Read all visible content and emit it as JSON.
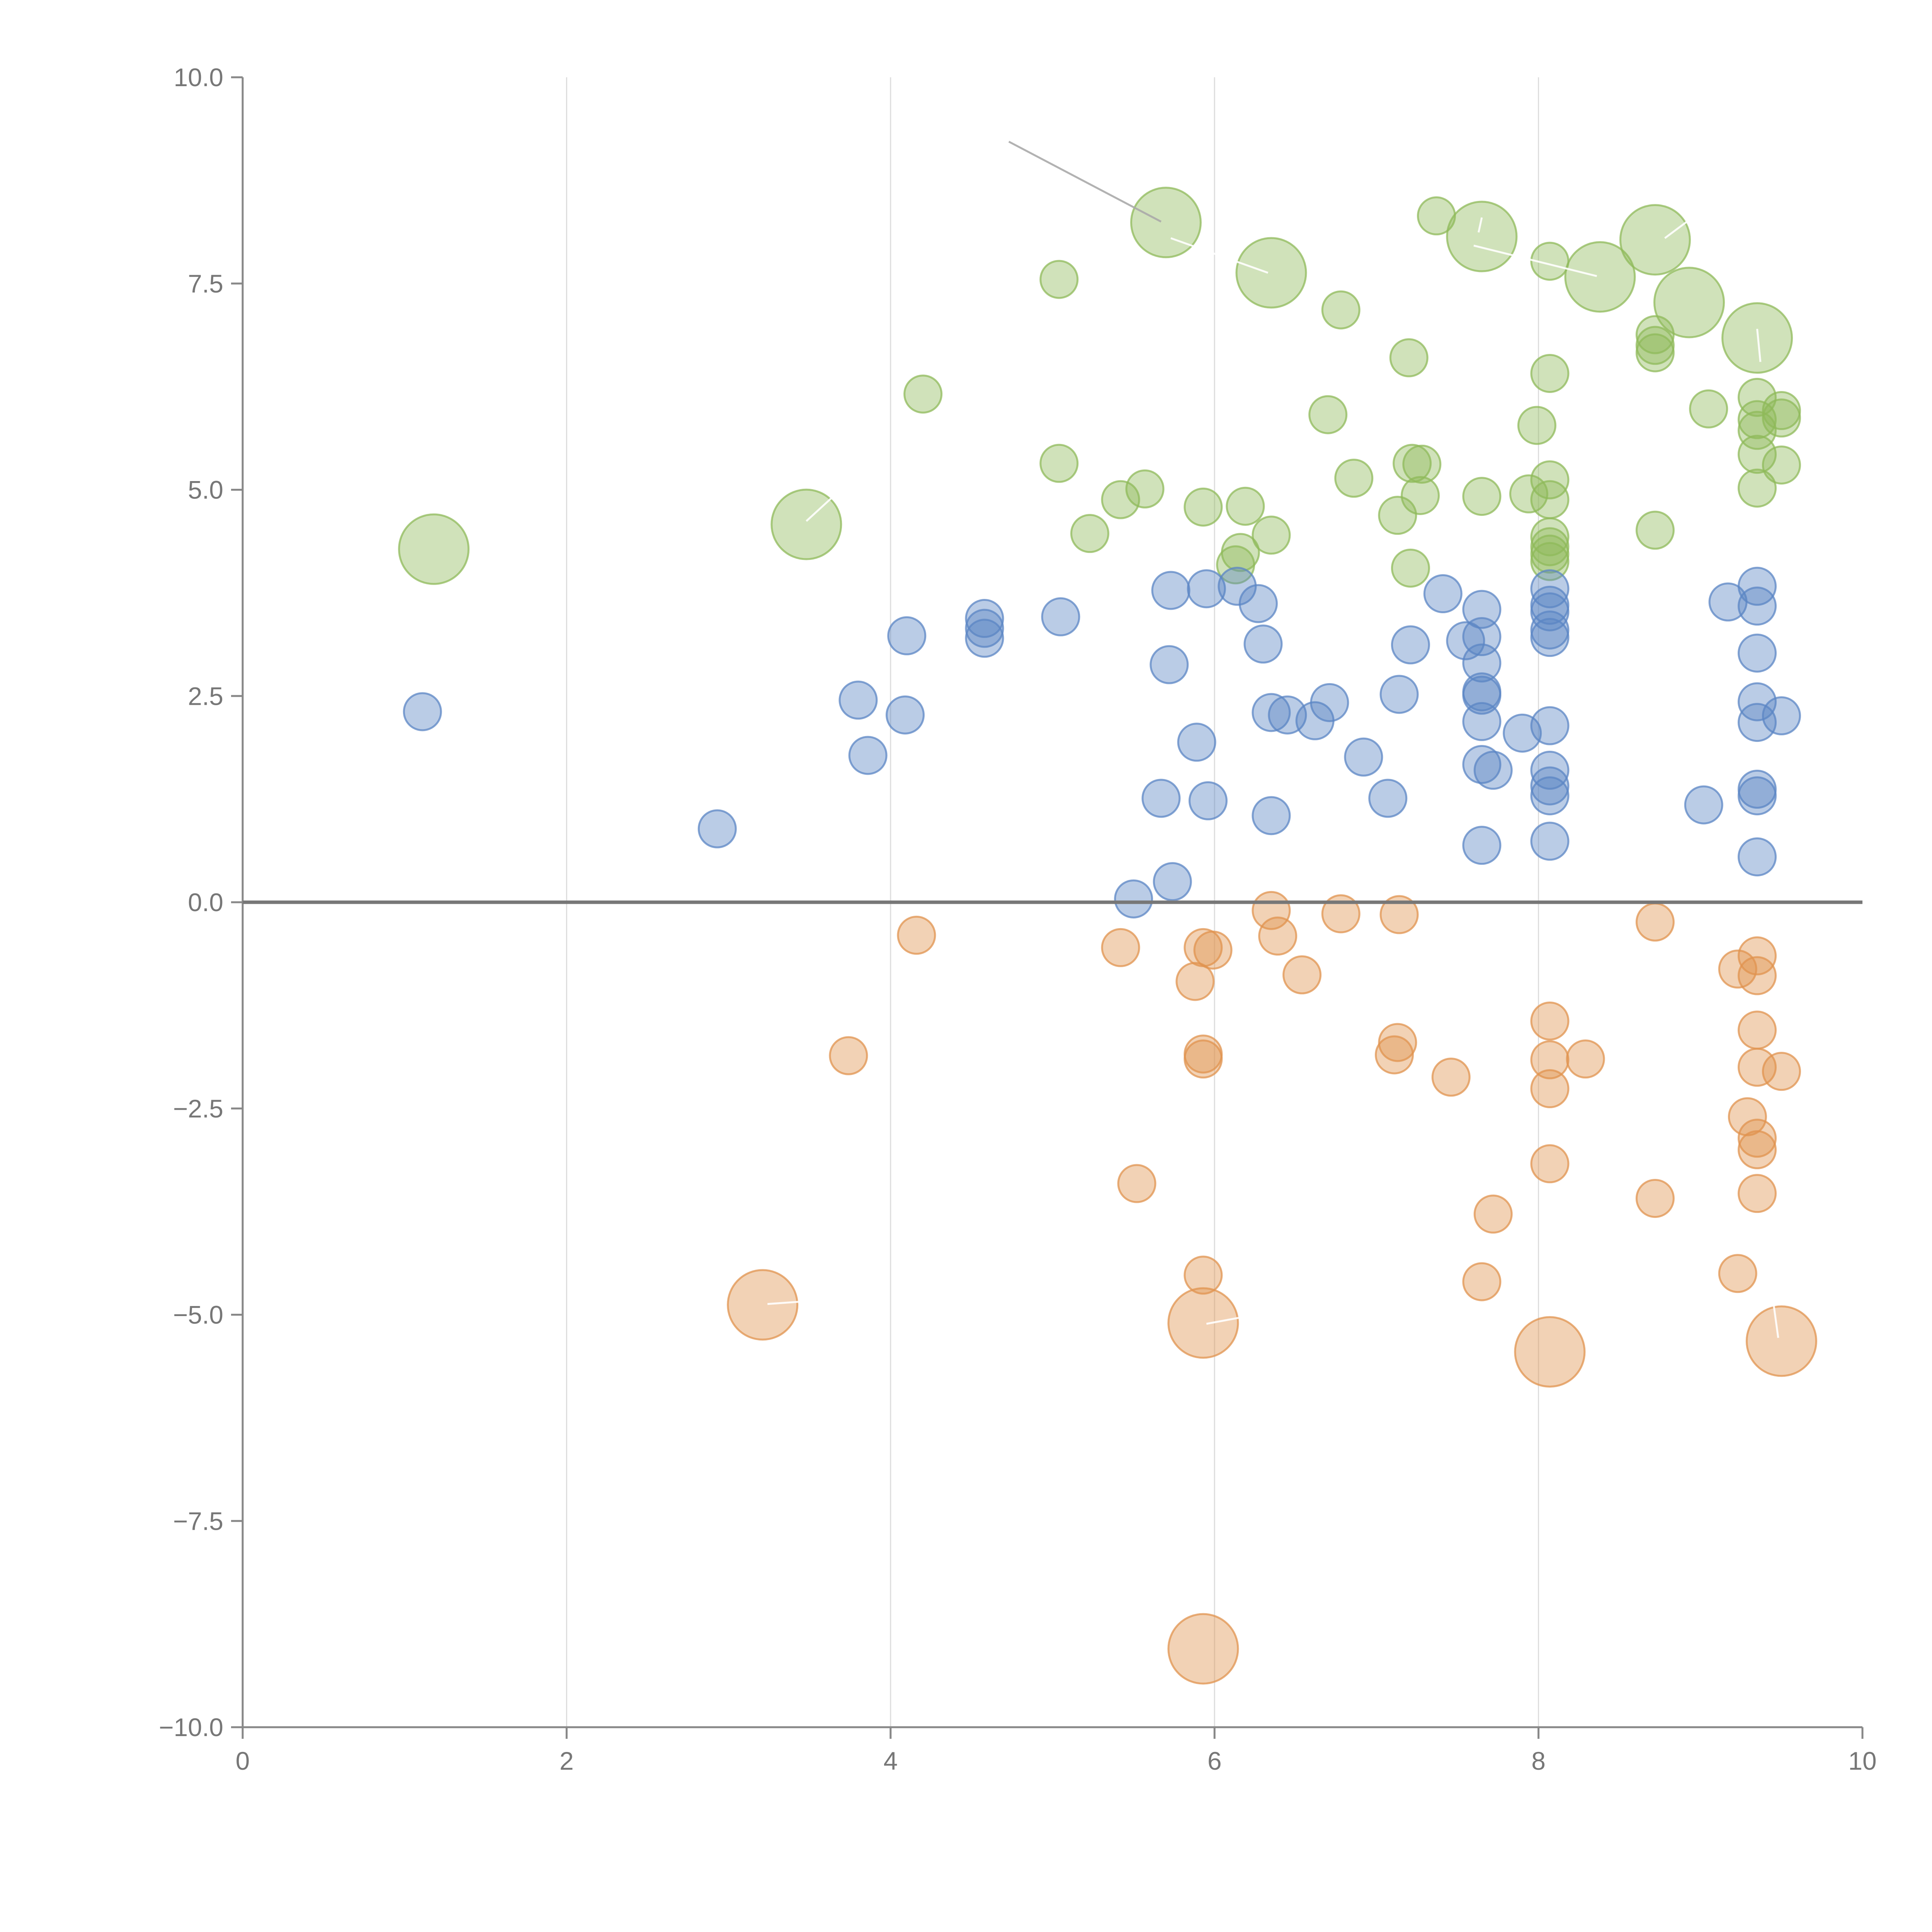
{
  "chart_data": {
    "type": "scatter",
    "title": "",
    "xlabel": "",
    "ylabel": "",
    "xlim": [
      0,
      10
    ],
    "ylim": [
      -10,
      10
    ],
    "grid": "vertical",
    "legend": "none",
    "x_ticks": [
      {
        "value": 0,
        "label": "0"
      },
      {
        "value": 2,
        "label": "2"
      },
      {
        "value": 4,
        "label": "4"
      },
      {
        "value": 6,
        "label": "6"
      },
      {
        "value": 8,
        "label": "8"
      },
      {
        "value": 10,
        "label": "10"
      }
    ],
    "y_ticks": [
      {
        "value": 10,
        "label": "10.0"
      },
      {
        "value": 7.5,
        "label": "7.5"
      },
      {
        "value": 5,
        "label": "5.0"
      },
      {
        "value": 2.5,
        "label": "2.5"
      },
      {
        "value": 0,
        "label": "0.0"
      },
      {
        "value": -2.5,
        "label": "−2.5"
      },
      {
        "value": -5,
        "label": "−5.0"
      },
      {
        "value": -7.5,
        "label": "−7.5"
      },
      {
        "value": -10,
        "label": "−10.0"
      }
    ],
    "colors": {
      "green": "#8fba5a",
      "blue": "#5b85c4",
      "orange": "#e0934f",
      "axis": "#888888",
      "grid": "#dddddd",
      "zero_line": "#777777"
    },
    "series": [
      {
        "name": "green",
        "color": "#8fba5a",
        "points": [
          {
            "x": 1.18,
            "y": 4.28,
            "size": 4
          },
          {
            "x": 3.48,
            "y": 4.58,
            "size": 4
          },
          {
            "x": 5.7,
            "y": 8.24,
            "size": 4
          },
          {
            "x": 6.35,
            "y": 7.63,
            "size": 4
          },
          {
            "x": 7.65,
            "y": 8.07,
            "size": 4
          },
          {
            "x": 8.38,
            "y": 7.58,
            "size": 4
          },
          {
            "x": 8.72,
            "y": 8.03,
            "size": 4
          },
          {
            "x": 8.93,
            "y": 7.27,
            "size": 4
          },
          {
            "x": 9.35,
            "y": 6.84,
            "size": 4
          },
          {
            "x": 5.04,
            "y": 7.55,
            "size": 1
          },
          {
            "x": 4.2,
            "y": 6.16,
            "size": 1
          },
          {
            "x": 6.78,
            "y": 7.18,
            "size": 1
          },
          {
            "x": 7.37,
            "y": 8.32,
            "size": 1
          },
          {
            "x": 8.07,
            "y": 7.77,
            "size": 1
          },
          {
            "x": 8.72,
            "y": 6.88,
            "size": 1
          },
          {
            "x": 8.72,
            "y": 6.75,
            "size": 1
          },
          {
            "x": 8.72,
            "y": 6.66,
            "size": 1
          },
          {
            "x": 7.2,
            "y": 6.6,
            "size": 1
          },
          {
            "x": 8.07,
            "y": 6.41,
            "size": 1
          },
          {
            "x": 9.35,
            "y": 6.12,
            "size": 1
          },
          {
            "x": 9.05,
            "y": 5.98,
            "size": 1
          },
          {
            "x": 9.5,
            "y": 5.96,
            "size": 1
          },
          {
            "x": 9.5,
            "y": 5.87,
            "size": 1
          },
          {
            "x": 9.35,
            "y": 5.85,
            "size": 1
          },
          {
            "x": 9.35,
            "y": 5.72,
            "size": 1
          },
          {
            "x": 6.7,
            "y": 5.91,
            "size": 1
          },
          {
            "x": 7.99,
            "y": 5.78,
            "size": 1
          },
          {
            "x": 9.35,
            "y": 5.43,
            "size": 1
          },
          {
            "x": 9.5,
            "y": 5.3,
            "size": 1
          },
          {
            "x": 5.04,
            "y": 5.32,
            "size": 1
          },
          {
            "x": 7.22,
            "y": 5.32,
            "size": 1
          },
          {
            "x": 7.28,
            "y": 5.31,
            "size": 1
          },
          {
            "x": 6.86,
            "y": 5.14,
            "size": 1
          },
          {
            "x": 8.07,
            "y": 5.12,
            "size": 1
          },
          {
            "x": 5.57,
            "y": 5.01,
            "size": 1
          },
          {
            "x": 9.35,
            "y": 5.02,
            "size": 1
          },
          {
            "x": 7.94,
            "y": 4.95,
            "size": 1
          },
          {
            "x": 7.65,
            "y": 4.92,
            "size": 1
          },
          {
            "x": 7.27,
            "y": 4.93,
            "size": 1
          },
          {
            "x": 5.42,
            "y": 4.88,
            "size": 1
          },
          {
            "x": 8.07,
            "y": 4.88,
            "size": 1
          },
          {
            "x": 5.93,
            "y": 4.79,
            "size": 1
          },
          {
            "x": 6.19,
            "y": 4.8,
            "size": 1
          },
          {
            "x": 7.13,
            "y": 4.69,
            "size": 1
          },
          {
            "x": 8.72,
            "y": 4.51,
            "size": 1
          },
          {
            "x": 5.23,
            "y": 4.47,
            "size": 1
          },
          {
            "x": 6.35,
            "y": 4.45,
            "size": 1
          },
          {
            "x": 8.07,
            "y": 4.43,
            "size": 1
          },
          {
            "x": 8.07,
            "y": 4.31,
            "size": 1
          },
          {
            "x": 6.16,
            "y": 4.24,
            "size": 1
          },
          {
            "x": 8.07,
            "y": 4.22,
            "size": 1
          },
          {
            "x": 8.07,
            "y": 4.13,
            "size": 1
          },
          {
            "x": 6.13,
            "y": 4.09,
            "size": 1
          },
          {
            "x": 7.21,
            "y": 4.05,
            "size": 1
          }
        ]
      },
      {
        "name": "blue",
        "color": "#5b85c4",
        "points": [
          {
            "x": 1.11,
            "y": 2.31,
            "size": 1
          },
          {
            "x": 2.93,
            "y": 0.89,
            "size": 1
          },
          {
            "x": 3.8,
            "y": 2.45,
            "size": 1
          },
          {
            "x": 3.86,
            "y": 1.78,
            "size": 1
          },
          {
            "x": 4.1,
            "y": 3.23,
            "size": 1
          },
          {
            "x": 4.09,
            "y": 2.27,
            "size": 1
          },
          {
            "x": 4.58,
            "y": 3.44,
            "size": 1
          },
          {
            "x": 4.58,
            "y": 3.32,
            "size": 1
          },
          {
            "x": 4.58,
            "y": 3.2,
            "size": 1
          },
          {
            "x": 5.05,
            "y": 3.46,
            "size": 1
          },
          {
            "x": 5.5,
            "y": 0.04,
            "size": 1
          },
          {
            "x": 5.67,
            "y": 1.26,
            "size": 1
          },
          {
            "x": 5.73,
            "y": 3.78,
            "size": 1
          },
          {
            "x": 5.72,
            "y": 2.88,
            "size": 1
          },
          {
            "x": 5.74,
            "y": 0.25,
            "size": 1
          },
          {
            "x": 5.89,
            "y": 1.94,
            "size": 1
          },
          {
            "x": 5.96,
            "y": 1.23,
            "size": 1
          },
          {
            "x": 5.95,
            "y": 3.8,
            "size": 1
          },
          {
            "x": 6.14,
            "y": 3.83,
            "size": 1
          },
          {
            "x": 6.27,
            "y": 3.62,
            "size": 1
          },
          {
            "x": 6.3,
            "y": 3.13,
            "size": 1
          },
          {
            "x": 6.35,
            "y": 2.3,
            "size": 1
          },
          {
            "x": 6.45,
            "y": 2.27,
            "size": 1
          },
          {
            "x": 6.35,
            "y": 1.05,
            "size": 1
          },
          {
            "x": 6.62,
            "y": 2.2,
            "size": 1
          },
          {
            "x": 6.71,
            "y": 2.42,
            "size": 1
          },
          {
            "x": 6.92,
            "y": 1.76,
            "size": 1
          },
          {
            "x": 7.07,
            "y": 1.26,
            "size": 1
          },
          {
            "x": 7.14,
            "y": 2.52,
            "size": 1
          },
          {
            "x": 7.21,
            "y": 3.12,
            "size": 1
          },
          {
            "x": 7.41,
            "y": 3.74,
            "size": 1
          },
          {
            "x": 7.55,
            "y": 3.17,
            "size": 1
          },
          {
            "x": 7.65,
            "y": 3.55,
            "size": 1
          },
          {
            "x": 7.65,
            "y": 3.22,
            "size": 1
          },
          {
            "x": 7.65,
            "y": 2.9,
            "size": 1
          },
          {
            "x": 7.65,
            "y": 2.55,
            "size": 1
          },
          {
            "x": 7.65,
            "y": 2.51,
            "size": 1
          },
          {
            "x": 7.65,
            "y": 2.19,
            "size": 1
          },
          {
            "x": 7.65,
            "y": 1.67,
            "size": 1
          },
          {
            "x": 7.72,
            "y": 1.6,
            "size": 1
          },
          {
            "x": 7.65,
            "y": 0.69,
            "size": 1
          },
          {
            "x": 7.9,
            "y": 2.05,
            "size": 1
          },
          {
            "x": 8.07,
            "y": 3.8,
            "size": 1
          },
          {
            "x": 8.07,
            "y": 3.6,
            "size": 1
          },
          {
            "x": 8.07,
            "y": 3.52,
            "size": 1
          },
          {
            "x": 8.07,
            "y": 3.3,
            "size": 1
          },
          {
            "x": 8.07,
            "y": 3.21,
            "size": 1
          },
          {
            "x": 8.07,
            "y": 2.14,
            "size": 1
          },
          {
            "x": 8.07,
            "y": 1.6,
            "size": 1
          },
          {
            "x": 8.07,
            "y": 1.41,
            "size": 1
          },
          {
            "x": 8.07,
            "y": 1.29,
            "size": 1
          },
          {
            "x": 8.07,
            "y": 0.74,
            "size": 1
          },
          {
            "x": 9.02,
            "y": 1.18,
            "size": 1
          },
          {
            "x": 9.17,
            "y": 3.64,
            "size": 1
          },
          {
            "x": 9.35,
            "y": 3.83,
            "size": 1
          },
          {
            "x": 9.35,
            "y": 3.59,
            "size": 1
          },
          {
            "x": 9.35,
            "y": 3.02,
            "size": 1
          },
          {
            "x": 9.35,
            "y": 2.43,
            "size": 1
          },
          {
            "x": 9.5,
            "y": 2.26,
            "size": 1
          },
          {
            "x": 9.35,
            "y": 2.18,
            "size": 1
          },
          {
            "x": 9.35,
            "y": 1.37,
            "size": 1
          },
          {
            "x": 9.35,
            "y": 1.29,
            "size": 1
          },
          {
            "x": 9.35,
            "y": 0.55,
            "size": 1
          }
        ]
      },
      {
        "name": "orange",
        "color": "#e0934f",
        "points": [
          {
            "x": 3.21,
            "y": -4.88,
            "size": 4
          },
          {
            "x": 5.93,
            "y": -5.1,
            "size": 4
          },
          {
            "x": 8.07,
            "y": -5.45,
            "size": 4
          },
          {
            "x": 9.5,
            "y": -5.32,
            "size": 4
          },
          {
            "x": 5.93,
            "y": -9.05,
            "size": 4
          },
          {
            "x": 4.16,
            "y": -0.4,
            "size": 1
          },
          {
            "x": 3.74,
            "y": -1.86,
            "size": 1
          },
          {
            "x": 5.42,
            "y": -0.55,
            "size": 1
          },
          {
            "x": 5.52,
            "y": -3.41,
            "size": 1
          },
          {
            "x": 5.88,
            "y": -0.96,
            "size": 1
          },
          {
            "x": 5.93,
            "y": -0.55,
            "size": 1
          },
          {
            "x": 5.99,
            "y": -0.58,
            "size": 1
          },
          {
            "x": 5.93,
            "y": -1.84,
            "size": 1
          },
          {
            "x": 5.93,
            "y": -1.9,
            "size": 1
          },
          {
            "x": 5.93,
            "y": -4.52,
            "size": 1
          },
          {
            "x": 6.35,
            "y": -0.1,
            "size": 1
          },
          {
            "x": 6.39,
            "y": -0.41,
            "size": 1
          },
          {
            "x": 6.54,
            "y": -0.88,
            "size": 1
          },
          {
            "x": 6.78,
            "y": -0.14,
            "size": 1
          },
          {
            "x": 7.14,
            "y": -0.15,
            "size": 1
          },
          {
            "x": 7.13,
            "y": -1.7,
            "size": 1
          },
          {
            "x": 7.11,
            "y": -1.85,
            "size": 1
          },
          {
            "x": 7.46,
            "y": -2.12,
            "size": 1
          },
          {
            "x": 7.72,
            "y": -3.78,
            "size": 1
          },
          {
            "x": 7.65,
            "y": -4.6,
            "size": 1
          },
          {
            "x": 8.07,
            "y": -1.44,
            "size": 1
          },
          {
            "x": 8.07,
            "y": -1.91,
            "size": 1
          },
          {
            "x": 8.07,
            "y": -2.26,
            "size": 1
          },
          {
            "x": 8.07,
            "y": -3.17,
            "size": 1
          },
          {
            "x": 8.29,
            "y": -1.9,
            "size": 1
          },
          {
            "x": 8.72,
            "y": -0.24,
            "size": 1
          },
          {
            "x": 8.72,
            "y": -3.59,
            "size": 1
          },
          {
            "x": 9.23,
            "y": -0.81,
            "size": 1
          },
          {
            "x": 9.23,
            "y": -4.5,
            "size": 1
          },
          {
            "x": 9.35,
            "y": -0.65,
            "size": 1
          },
          {
            "x": 9.35,
            "y": -0.89,
            "size": 1
          },
          {
            "x": 9.35,
            "y": -1.55,
            "size": 1
          },
          {
            "x": 9.35,
            "y": -2.0,
            "size": 1
          },
          {
            "x": 9.5,
            "y": -2.05,
            "size": 1
          },
          {
            "x": 9.29,
            "y": -2.6,
            "size": 1
          },
          {
            "x": 9.35,
            "y": -2.86,
            "size": 1
          },
          {
            "x": 9.35,
            "y": -3.0,
            "size": 1
          },
          {
            "x": 9.35,
            "y": -3.53,
            "size": 1
          }
        ]
      }
    ],
    "leader_lines": [
      {
        "from": [
          4.73,
          9.22
        ],
        "to": [
          5.67,
          8.25
        ],
        "color": "#aaaaaa"
      },
      {
        "from": [
          5.73,
          8.05
        ],
        "to": [
          6.33,
          7.63
        ],
        "color": "#ffffff"
      },
      {
        "from": [
          7.65,
          8.3
        ],
        "to": [
          7.63,
          8.12
        ],
        "color": "#ffffff"
      },
      {
        "from": [
          7.6,
          7.96
        ],
        "to": [
          8.36,
          7.59
        ],
        "color": "#ffffff"
      },
      {
        "from": [
          8.93,
          8.27
        ],
        "to": [
          8.78,
          8.05
        ],
        "color": "#ffffff"
      },
      {
        "from": [
          9.35,
          6.95
        ],
        "to": [
          9.37,
          6.55
        ],
        "color": "#ffffff"
      },
      {
        "from": [
          3.48,
          4.62
        ],
        "to": [
          3.68,
          4.98
        ],
        "color": "#ffffff"
      },
      {
        "from": [
          3.24,
          -4.87
        ],
        "to": [
          3.6,
          -4.82
        ],
        "color": "#ffffff"
      },
      {
        "from": [
          5.95,
          -5.11
        ],
        "to": [
          6.17,
          -5.03
        ],
        "color": "#ffffff"
      },
      {
        "from": [
          9.48,
          -5.28
        ],
        "to": [
          9.45,
          -4.85
        ],
        "color": "#ffffff"
      }
    ]
  }
}
